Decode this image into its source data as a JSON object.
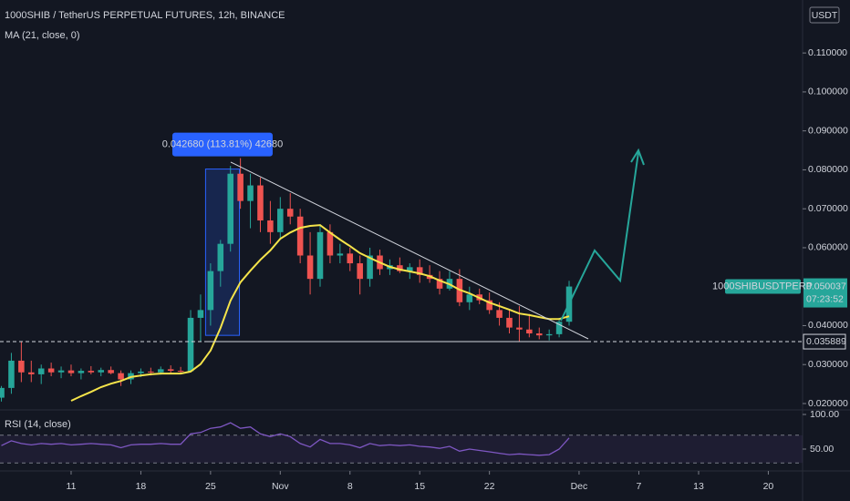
{
  "chart_data": [
    {
      "type": "candlestick",
      "title": "1000SHIB / TetherUS PERPETUAL FUTURES, 12h, BINANCE",
      "x": [
        4,
        5,
        6,
        7,
        8,
        9,
        10,
        11,
        12,
        13,
        14,
        15,
        16,
        17,
        18,
        19,
        20,
        21,
        22,
        23,
        24,
        25,
        26,
        27,
        28,
        29,
        30,
        31,
        32,
        33,
        34,
        35,
        36,
        37,
        38,
        39,
        40,
        41,
        42,
        43,
        44,
        45,
        46,
        47,
        48,
        49,
        50,
        51,
        52,
        53,
        54,
        55,
        56,
        57,
        58,
        59,
        60,
        61
      ],
      "open": [
        0.0215,
        0.024,
        0.031,
        0.028,
        0.0275,
        0.029,
        0.028,
        0.0285,
        0.0278,
        0.0284,
        0.028,
        0.0286,
        0.0278,
        0.0262,
        0.0278,
        0.0282,
        0.028,
        0.0288,
        0.0284,
        0.0283,
        0.042,
        0.044,
        0.054,
        0.061,
        0.079,
        0.072,
        0.076,
        0.067,
        0.064,
        0.07,
        0.068,
        0.058,
        0.052,
        0.064,
        0.058,
        0.0585,
        0.056,
        0.052,
        0.058,
        0.0545,
        0.0555,
        0.054,
        0.055,
        0.053,
        0.052,
        0.0495,
        0.052,
        0.046,
        0.048,
        0.0465,
        0.044,
        0.042,
        0.0395,
        0.039,
        0.038,
        0.0375,
        0.0378,
        0.041
      ],
      "high": [
        0.0245,
        0.033,
        0.036,
        0.031,
        0.03,
        0.0305,
        0.0295,
        0.03,
        0.029,
        0.0296,
        0.0292,
        0.0295,
        0.0285,
        0.0285,
        0.029,
        0.0292,
        0.0295,
        0.0298,
        0.0294,
        0.044,
        0.048,
        0.056,
        0.062,
        0.081,
        0.083,
        0.079,
        0.078,
        0.072,
        0.073,
        0.074,
        0.07,
        0.064,
        0.066,
        0.066,
        0.061,
        0.06,
        0.058,
        0.06,
        0.0595,
        0.057,
        0.0575,
        0.056,
        0.057,
        0.0555,
        0.054,
        0.054,
        0.0545,
        0.05,
        0.0495,
        0.0485,
        0.046,
        0.044,
        0.045,
        0.043,
        0.0395,
        0.039,
        0.042,
        0.0515
      ],
      "low": [
        0.0205,
        0.0225,
        0.0255,
        0.0255,
        0.025,
        0.027,
        0.0265,
        0.027,
        0.0262,
        0.0275,
        0.027,
        0.0275,
        0.0245,
        0.025,
        0.0268,
        0.0272,
        0.0274,
        0.0278,
        0.0276,
        0.028,
        0.036,
        0.04,
        0.05,
        0.059,
        0.07,
        0.065,
        0.064,
        0.061,
        0.062,
        0.066,
        0.056,
        0.048,
        0.05,
        0.056,
        0.056,
        0.054,
        0.048,
        0.05,
        0.053,
        0.053,
        0.0535,
        0.052,
        0.051,
        0.051,
        0.048,
        0.049,
        0.045,
        0.044,
        0.0455,
        0.043,
        0.04,
        0.038,
        0.036,
        0.037,
        0.0365,
        0.0362,
        0.037,
        0.04
      ],
      "close": [
        0.024,
        0.031,
        0.028,
        0.0275,
        0.029,
        0.028,
        0.0285,
        0.0278,
        0.0284,
        0.028,
        0.0286,
        0.0278,
        0.0262,
        0.0278,
        0.0282,
        0.028,
        0.0288,
        0.0284,
        0.0283,
        0.042,
        0.044,
        0.054,
        0.061,
        0.079,
        0.072,
        0.076,
        0.067,
        0.064,
        0.07,
        0.068,
        0.058,
        0.052,
        0.064,
        0.058,
        0.0585,
        0.056,
        0.052,
        0.058,
        0.0545,
        0.0555,
        0.054,
        0.055,
        0.053,
        0.052,
        0.0495,
        0.052,
        0.046,
        0.048,
        0.0465,
        0.044,
        0.042,
        0.0395,
        0.039,
        0.038,
        0.0375,
        0.0378,
        0.041,
        0.050037
      ],
      "up_color": "#26a69a",
      "down_color": "#ef5350",
      "series": [
        {
          "name": "MA (21, close, 0)",
          "color": "#f5e44a",
          "values": [
            null,
            null,
            null,
            null,
            null,
            null,
            null,
            0.0207,
            0.0219,
            0.023,
            0.0242,
            0.0251,
            0.0258,
            0.0268,
            0.0272,
            0.0275,
            0.0277,
            0.0277,
            0.0277,
            0.0282,
            0.0301,
            0.0336,
            0.0394,
            0.0464,
            0.0511,
            0.0541,
            0.0569,
            0.0593,
            0.0623,
            0.0639,
            0.0651,
            0.0656,
            0.0658,
            0.0639,
            0.0621,
            0.0604,
            0.0586,
            0.0574,
            0.0562,
            0.0551,
            0.0544,
            0.0539,
            0.0534,
            0.0527,
            0.0516,
            0.0506,
            0.0492,
            0.0483,
            0.0471,
            0.0459,
            0.045,
            0.0441,
            0.0431,
            0.0427,
            0.0422,
            0.0417,
            0.0417,
            0.0424
          ]
        }
      ],
      "xlim": [
        3.86,
        84.44
      ],
      "xticks": [
        11,
        18,
        25,
        {
          "value": 32,
          "label": "Nov"
        },
        {
          "value": 39,
          "label": "8"
        },
        {
          "value": 46,
          "label": "15"
        },
        {
          "value": 53,
          "label": "22"
        },
        {
          "value": 62,
          "label": "Dec"
        },
        {
          "value": 68,
          "label": "7"
        },
        {
          "value": 74,
          "label": "13"
        },
        {
          "value": 81,
          "label": "20"
        }
      ],
      "ylim": [
        0.01836,
        0.1236
      ],
      "yticks": [
        {
          "value": 0.02,
          "label": "0.020000"
        },
        {
          "value": 0.03,
          "label": "0.030000"
        },
        {
          "value": 0.04,
          "label": "0.040000"
        },
        {
          "value": 0.06,
          "label": "0.060000"
        },
        {
          "value": 0.07,
          "label": "0.070000"
        },
        {
          "value": 0.08,
          "label": "0.080000"
        },
        {
          "value": 0.09,
          "label": "0.090000"
        },
        {
          "value": 0.1,
          "label": "0.100000"
        },
        {
          "value": 0.11,
          "label": "0.110000"
        }
      ],
      "unit": "USDT",
      "grid": false,
      "last_price": {
        "symbol": "1000SHIBUSDTPERP",
        "value": 0.050037,
        "countdown": "07:23:52"
      },
      "reference_line": 0.035889,
      "measure": {
        "x": [
          24.5,
          27.9
        ],
        "low": 0.0375,
        "high": 0.0802,
        "label": "0.042680 (113.81%) 42680"
      }
    },
    {
      "type": "line",
      "x": [
        4,
        5,
        6,
        7,
        8,
        9,
        10,
        11,
        12,
        13,
        14,
        15,
        16,
        17,
        18,
        19,
        20,
        21,
        22,
        23,
        24,
        25,
        26,
        27,
        28,
        29,
        30,
        31,
        32,
        33,
        34,
        35,
        36,
        37,
        38,
        39,
        40,
        41,
        42,
        43,
        44,
        45,
        46,
        47,
        48,
        49,
        50,
        51,
        52,
        53,
        54,
        55,
        56,
        57,
        58,
        59,
        60,
        61
      ],
      "series": [
        {
          "name": "RSI (14, close)",
          "color": "#7e57c2",
          "values": [
            55,
            62,
            58,
            56,
            58,
            57,
            58,
            56,
            57,
            58,
            57,
            56,
            52,
            56,
            57,
            57,
            58,
            57,
            57,
            72,
            74,
            80,
            82,
            88,
            80,
            82,
            72,
            68,
            72,
            68,
            58,
            53,
            64,
            58,
            58,
            56,
            52,
            58,
            55,
            56,
            55,
            56,
            54,
            53,
            51,
            54,
            47,
            50,
            48,
            46,
            44,
            42,
            43,
            42,
            41,
            42,
            50,
            66
          ]
        }
      ],
      "ylim": [
        18.4,
        106.6
      ],
      "yticks": [
        {
          "value": 100,
          "label": "100.00"
        },
        {
          "value": 50,
          "label": "50.00"
        }
      ],
      "levels": [
        70,
        30
      ]
    }
  ]
}
